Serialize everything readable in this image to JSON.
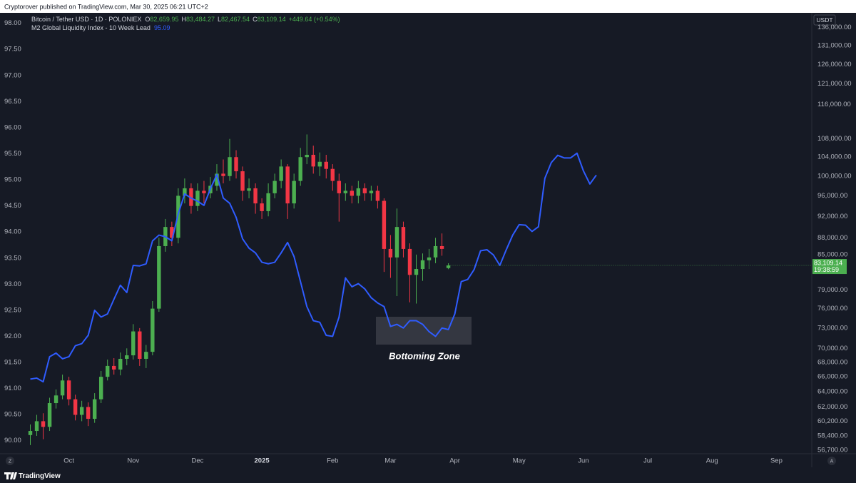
{
  "header": {
    "attribution": "Cryptorover published on TradingView.com, Mar 30, 2025 06:21 UTC+2"
  },
  "chart_data": {
    "type": "candlestick",
    "legend": {
      "ohlc": [
        {
          "key": "O",
          "value": "82,659.95"
        },
        {
          "key": "H",
          "value": "83,484.27"
        },
        {
          "key": "L",
          "value": "82,467.54"
        },
        {
          "key": "C",
          "value": "83,109.14"
        }
      ],
      "change": "+449.64 (+0.54%)",
      "m2_value": "95.09"
    },
    "annotation": "Bottoming Zone",
    "currency": "USDT",
    "price_label": {
      "value": "83,109.14",
      "time": "19:38:59"
    },
    "grid": false,
    "y2scale": "log",
    "categories": [
      null,
      null,
      null,
      null,
      null,
      null,
      "Oct",
      null,
      null,
      null,
      null,
      null,
      null,
      null,
      null,
      null,
      "Nov",
      null,
      null,
      null,
      null,
      null,
      null,
      null,
      null,
      null,
      "Dec",
      null,
      null,
      null,
      null,
      null,
      null,
      null,
      null,
      null,
      "2025",
      null,
      null,
      null,
      null,
      null,
      null,
      null,
      null,
      null,
      null,
      "Feb",
      null,
      null,
      null,
      null,
      null,
      null,
      null,
      null,
      "Mar",
      null,
      null,
      null,
      null,
      null,
      null,
      null,
      null,
      null,
      "Apr",
      null,
      null,
      null,
      null,
      null,
      null,
      null,
      null,
      null,
      "May",
      null,
      null,
      null,
      null,
      null,
      null,
      null,
      null,
      null,
      "Jun",
      null,
      null,
      null,
      null,
      null,
      null,
      null,
      null,
      null,
      "Jul",
      null,
      null,
      null,
      null,
      null,
      null,
      null,
      null,
      null,
      "Aug",
      null,
      null,
      null,
      null,
      null,
      null,
      null,
      null,
      null,
      "Sep",
      null,
      null,
      null,
      null,
      null
    ],
    "ylim": [
      89.75,
      98.2
    ],
    "yticks": [
      {
        "value": 90,
        "label": "90.00"
      },
      {
        "value": 90.5,
        "label": "90.50"
      },
      {
        "value": 91,
        "label": "91.00"
      },
      {
        "value": 91.5,
        "label": "91.50"
      },
      {
        "value": 92,
        "label": "92.00"
      },
      {
        "value": 92.5,
        "label": "92.50"
      },
      {
        "value": 93,
        "label": "93.00"
      },
      {
        "value": 93.5,
        "label": "93.50"
      },
      {
        "value": 94,
        "label": "94.00"
      },
      {
        "value": 94.5,
        "label": "94.50"
      },
      {
        "value": 95,
        "label": "95.00"
      },
      {
        "value": 95.5,
        "label": "95.50"
      },
      {
        "value": 96,
        "label": "96.00"
      },
      {
        "value": 96.5,
        "label": "96.50"
      },
      {
        "value": 97,
        "label": "97.00"
      },
      {
        "value": 97.5,
        "label": "97.50"
      },
      {
        "value": 98,
        "label": "98.00"
      }
    ],
    "y2lim": [
      56280,
      140200
    ],
    "y2ticks": [
      {
        "value": 56700,
        "label": "56,700.00"
      },
      {
        "value": 58400,
        "label": "58,400.00"
      },
      {
        "value": 60200,
        "label": "60,200.00"
      },
      {
        "value": 62000,
        "label": "62,000.00"
      },
      {
        "value": 64000,
        "label": "64,000.00"
      },
      {
        "value": 66000,
        "label": "66,000.00"
      },
      {
        "value": 68000,
        "label": "68,000.00"
      },
      {
        "value": 70000,
        "label": "70,000.00"
      },
      {
        "value": 73000,
        "label": "73,000.00"
      },
      {
        "value": 76000,
        "label": "76,000.00"
      },
      {
        "value": 79000,
        "label": "79,000.00"
      },
      {
        "value": 85000,
        "label": "85,000.00"
      },
      {
        "value": 88000,
        "label": "88,000.00"
      },
      {
        "value": 92000,
        "label": "92,000.00"
      },
      {
        "value": 96000,
        "label": "96,000.00"
      },
      {
        "value": 100000,
        "label": "100,000.00"
      },
      {
        "value": 104000,
        "label": "104,000.00"
      },
      {
        "value": 108000,
        "label": "108,000.00"
      },
      {
        "value": 116000,
        "label": "116,000.00"
      },
      {
        "value": 121000,
        "label": "121,000.00"
      },
      {
        "value": 126000,
        "label": "126,000.00"
      },
      {
        "value": 131000,
        "label": "131,000.00"
      },
      {
        "value": 136000,
        "label": "136,000.00"
      }
    ],
    "series": [
      {
        "name": "M2 Global Liquidity Index - 10 Week Lead",
        "type": "line",
        "color": "#2f5cff",
        "values": [
          91.18,
          91.2,
          91.13,
          91.61,
          91.68,
          91.57,
          91.61,
          91.82,
          91.86,
          92.02,
          92.5,
          92.37,
          92.43,
          92.71,
          92.98,
          92.84,
          93.36,
          93.35,
          93.39,
          93.83,
          93.94,
          93.91,
          93.83,
          94.35,
          94.73,
          94.65,
          94.59,
          94.51,
          94.83,
          95.1,
          94.65,
          94.55,
          94.28,
          93.87,
          93.69,
          93.6,
          93.42,
          93.39,
          93.42,
          93.6,
          93.8,
          93.53,
          93.05,
          92.57,
          92.3,
          92.27,
          92.02,
          92.0,
          92.37,
          93.12,
          92.95,
          93.01,
          92.91,
          92.74,
          92.64,
          92.57,
          92.19,
          92.23,
          92.16,
          92.3,
          92.3,
          92.23,
          92.09,
          92.0,
          92.16,
          92.13,
          92.43,
          93.05,
          93.09,
          93.28,
          93.64,
          93.66,
          93.56,
          93.36,
          93.66,
          93.94,
          94.14,
          94.13,
          94.01,
          94.1,
          95.03,
          95.33,
          95.47,
          95.42,
          95.42,
          95.51,
          95.17,
          94.92,
          95.09,
          null,
          null,
          null,
          null,
          null,
          null,
          null,
          null,
          null,
          null,
          null,
          null,
          null,
          null,
          null,
          null,
          null,
          null,
          null,
          null,
          null,
          null,
          null,
          null,
          null,
          null,
          null,
          null,
          null,
          null,
          null,
          null,
          null
        ]
      },
      {
        "name": "Bitcoin / Tether USD · 1D · POLONIEX",
        "type": "candlestick",
        "axis": "y2",
        "up_color": "#4caf50",
        "down_color": "#f23645",
        "open": [
          58500,
          59000,
          60200,
          59500,
          62500,
          63500,
          65500,
          63000,
          61000,
          62000,
          60500,
          63000,
          66000,
          67500,
          67000,
          68500,
          69000,
          72500,
          68500,
          69500,
          76000,
          86500,
          90000,
          88000,
          96000,
          97500,
          94000,
          97000,
          96500,
          98000,
          100500,
          100000,
          104000,
          101000,
          97000,
          97500,
          94500,
          93000,
          96500,
          99000,
          102000,
          94500,
          99000,
          104000,
          104500,
          102000,
          103000,
          101500,
          99000,
          96500,
          97000,
          96000,
          97500,
          96500,
          97000,
          95000,
          86000,
          84500,
          90000,
          86000,
          81500,
          82500,
          84000,
          84500,
          86500,
          82659.95,
          null,
          null,
          null,
          null,
          null,
          null,
          null,
          null,
          null,
          null,
          null,
          null,
          null,
          null,
          null,
          null,
          null,
          null,
          null,
          null,
          null,
          null,
          null,
          null,
          null,
          null,
          null,
          null,
          null,
          null,
          null,
          null,
          null,
          null,
          null,
          null,
          null,
          null,
          null,
          null,
          null,
          null,
          null,
          null,
          null,
          null,
          null,
          null,
          null,
          null
        ],
        "high": [
          59800,
          61000,
          61200,
          63200,
          64300,
          66300,
          66000,
          63600,
          62800,
          62600,
          63800,
          66800,
          68400,
          68600,
          69400,
          70000,
          73600,
          73000,
          70500,
          77200,
          88000,
          91500,
          91000,
          97500,
          99500,
          98500,
          98500,
          99000,
          99800,
          102500,
          103500,
          108000,
          105500,
          102000,
          99500,
          98500,
          95500,
          98500,
          100500,
          103500,
          102500,
          100500,
          106000,
          109000,
          106500,
          105000,
          104500,
          102500,
          100500,
          98500,
          98000,
          99000,
          98500,
          98000,
          98000,
          95500,
          88500,
          93500,
          91000,
          87000,
          85000,
          85200,
          86000,
          88000,
          88800,
          83484.27,
          null,
          null,
          null,
          null,
          null,
          null,
          null,
          null,
          null,
          null,
          null,
          null,
          null,
          null,
          null,
          null,
          null,
          null,
          null,
          null,
          null,
          null,
          null,
          null,
          null,
          null,
          null,
          null,
          null,
          null,
          null,
          null,
          null,
          null,
          null,
          null,
          null,
          null,
          null,
          null,
          null,
          null,
          null,
          null,
          null,
          null,
          null,
          null,
          null,
          null
        ],
        "low": [
          57300,
          58400,
          58000,
          59000,
          61800,
          63000,
          62200,
          60300,
          60200,
          59600,
          60000,
          62500,
          65500,
          66300,
          66200,
          67600,
          68400,
          67500,
          67200,
          69000,
          75500,
          85500,
          86500,
          87000,
          94500,
          92500,
          93000,
          94500,
          95500,
          97000,
          98500,
          99000,
          99500,
          95000,
          95500,
          92500,
          91500,
          92000,
          95500,
          97500,
          91500,
          93500,
          98000,
          102500,
          100500,
          100000,
          99500,
          97000,
          91000,
          95000,
          94500,
          94500,
          95000,
          95000,
          93500,
          82000,
          81000,
          78000,
          84500,
          77000,
          76800,
          80500,
          82500,
          83500,
          84800,
          82467.54,
          null,
          null,
          null,
          null,
          null,
          null,
          null,
          null,
          null,
          null,
          null,
          null,
          null,
          null,
          null,
          null,
          null,
          null,
          null,
          null,
          null,
          null,
          null,
          null,
          null,
          null,
          null,
          null,
          null,
          null,
          null,
          null,
          null,
          null,
          null,
          null,
          null,
          null,
          null,
          null,
          null,
          null,
          null,
          null,
          null,
          null,
          null,
          null,
          null,
          null
        ],
        "close": [
          59000,
          60200,
          59500,
          62500,
          63500,
          65500,
          63000,
          61000,
          62000,
          60500,
          63000,
          66000,
          67500,
          67000,
          68500,
          69000,
          72500,
          68500,
          69500,
          76000,
          86500,
          90000,
          88000,
          96000,
          97500,
          94000,
          97000,
          96500,
          98000,
          100500,
          100000,
          104000,
          101000,
          97000,
          97500,
          94500,
          93000,
          96500,
          99000,
          102000,
          94500,
          99000,
          104000,
          104500,
          102000,
          103000,
          101500,
          99000,
          96500,
          97000,
          96000,
          97500,
          96500,
          97000,
          95000,
          86000,
          84500,
          90000,
          86000,
          81500,
          82500,
          84000,
          84500,
          86500,
          86000,
          83109.14,
          null,
          null,
          null,
          null,
          null,
          null,
          null,
          null,
          null,
          null,
          null,
          null,
          null,
          null,
          null,
          null,
          null,
          null,
          null,
          null,
          null,
          null,
          null,
          null,
          null,
          null,
          null,
          null,
          null,
          null,
          null,
          null,
          null,
          null,
          null,
          null,
          null,
          null,
          null,
          null,
          null,
          null,
          null,
          null,
          null,
          null,
          null,
          null,
          null,
          null
        ]
      }
    ]
  },
  "footer": {
    "brand": "TradingView",
    "zoom_button": "Z",
    "auto_button": "A"
  }
}
